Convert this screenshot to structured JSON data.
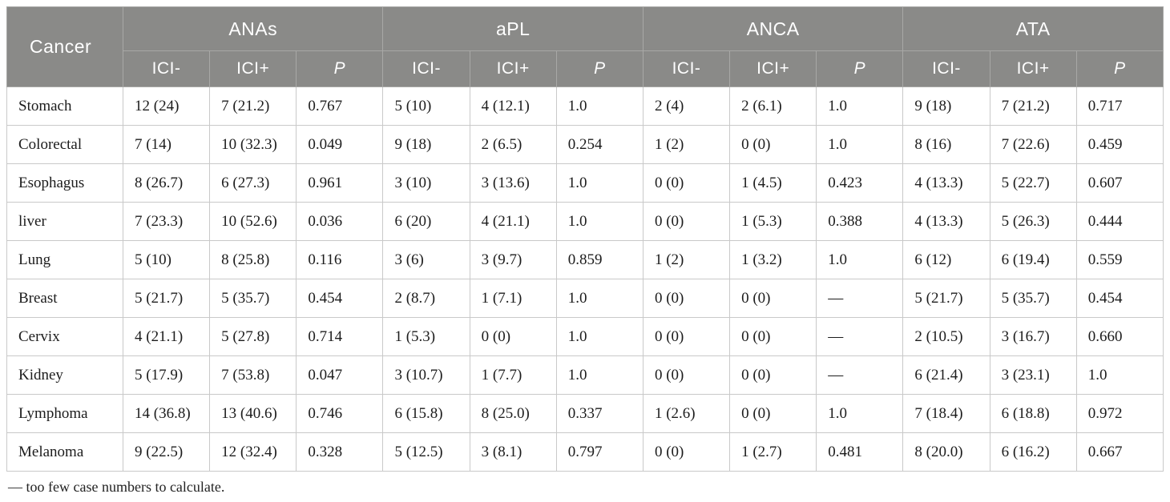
{
  "colors": {
    "header_bg": "#8a8a88",
    "header_text": "#ffffff",
    "header_border": "#a8a8a6",
    "body_border": "#c9c9c9",
    "body_text": "#1c1c1c"
  },
  "table": {
    "corner_label": "Cancer",
    "groups": [
      {
        "label": "ANAs",
        "sub": [
          "ICI-",
          "ICI+",
          "P"
        ]
      },
      {
        "label": "aPL",
        "sub": [
          "ICI-",
          "ICI+",
          "P"
        ]
      },
      {
        "label": "ANCA",
        "sub": [
          "ICI-",
          "ICI+",
          "P"
        ]
      },
      {
        "label": "ATA",
        "sub": [
          "ICI-",
          "ICI+",
          "P"
        ]
      }
    ],
    "rows": [
      {
        "cancer": "Stomach",
        "cells": [
          "12 (24)",
          "7 (21.2)",
          "0.767",
          "5 (10)",
          "4 (12.1)",
          "1.0",
          "2 (4)",
          "2 (6.1)",
          "1.0",
          "9 (18)",
          "7 (21.2)",
          "0.717"
        ]
      },
      {
        "cancer": "Colorectal",
        "cells": [
          "7 (14)",
          "10 (32.3)",
          "0.049",
          "9 (18)",
          "2 (6.5)",
          "0.254",
          "1 (2)",
          "0 (0)",
          "1.0",
          "8 (16)",
          "7 (22.6)",
          "0.459"
        ]
      },
      {
        "cancer": "Esophagus",
        "cells": [
          "8 (26.7)",
          "6 (27.3)",
          "0.961",
          "3 (10)",
          "3 (13.6)",
          "1.0",
          "0 (0)",
          "1 (4.5)",
          "0.423",
          "4 (13.3)",
          "5 (22.7)",
          "0.607"
        ]
      },
      {
        "cancer": "liver",
        "cells": [
          "7 (23.3)",
          "10 (52.6)",
          "0.036",
          "6 (20)",
          "4 (21.1)",
          "1.0",
          "0 (0)",
          "1 (5.3)",
          "0.388",
          "4 (13.3)",
          "5 (26.3)",
          "0.444"
        ]
      },
      {
        "cancer": "Lung",
        "cells": [
          "5 (10)",
          "8 (25.8)",
          "0.116",
          "3 (6)",
          "3 (9.7)",
          "0.859",
          "1 (2)",
          "1 (3.2)",
          "1.0",
          "6 (12)",
          "6 (19.4)",
          "0.559"
        ]
      },
      {
        "cancer": "Breast",
        "cells": [
          "5 (21.7)",
          "5 (35.7)",
          "0.454",
          "2 (8.7)",
          "1 (7.1)",
          "1.0",
          "0 (0)",
          "0 (0)",
          "—",
          "5 (21.7)",
          "5 (35.7)",
          "0.454"
        ]
      },
      {
        "cancer": "Cervix",
        "cells": [
          "4 (21.1)",
          "5 (27.8)",
          "0.714",
          "1 (5.3)",
          "0 (0)",
          "1.0",
          "0 (0)",
          "0 (0)",
          "—",
          "2 (10.5)",
          "3 (16.7)",
          "0.660"
        ]
      },
      {
        "cancer": "Kidney",
        "cells": [
          "5 (17.9)",
          "7 (53.8)",
          "0.047",
          "3 (10.7)",
          "1 (7.7)",
          "1.0",
          "0 (0)",
          "0 (0)",
          "—",
          "6 (21.4)",
          "3 (23.1)",
          "1.0"
        ]
      },
      {
        "cancer": "Lymphoma",
        "cells": [
          "14 (36.8)",
          "13 (40.6)",
          "0.746",
          "6 (15.8)",
          "8 (25.0)",
          "0.337",
          "1 (2.6)",
          "0 (0)",
          "1.0",
          "7 (18.4)",
          "6 (18.8)",
          "0.972"
        ]
      },
      {
        "cancer": "Melanoma",
        "cells": [
          "9 (22.5)",
          "12 (32.4)",
          "0.328",
          "5 (12.5)",
          "3 (8.1)",
          "0.797",
          "0 (0)",
          "1 (2.7)",
          "0.481",
          "8 (20.0)",
          "6 (16.2)",
          "0.667"
        ]
      }
    ]
  },
  "footnote": "— too few case numbers to calculate."
}
